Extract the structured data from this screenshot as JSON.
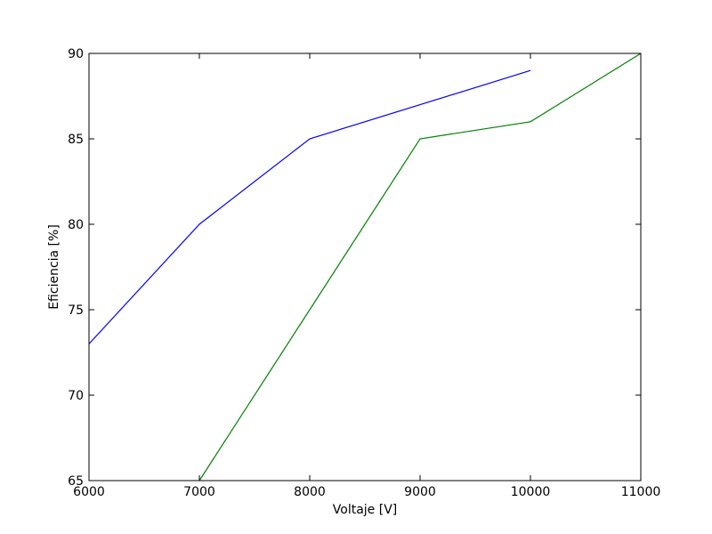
{
  "chart_data": {
    "type": "line",
    "title": "",
    "xlabel": "Voltaje [V]",
    "ylabel": "Eficiencia [%]",
    "xlim": [
      6000,
      11000
    ],
    "ylim": [
      65,
      90
    ],
    "xticks": [
      6000,
      7000,
      8000,
      9000,
      10000,
      11000
    ],
    "yticks": [
      65,
      70,
      75,
      80,
      85,
      90
    ],
    "grid": false,
    "legend": "none",
    "series": [
      {
        "color": "#0000ff",
        "x": [
          6000,
          7000,
          8000,
          10000
        ],
        "y": [
          73,
          80,
          85,
          89
        ]
      },
      {
        "color": "#008000",
        "x": [
          7000,
          9000,
          10000,
          11000
        ],
        "y": [
          65,
          85,
          86,
          90
        ]
      }
    ]
  }
}
